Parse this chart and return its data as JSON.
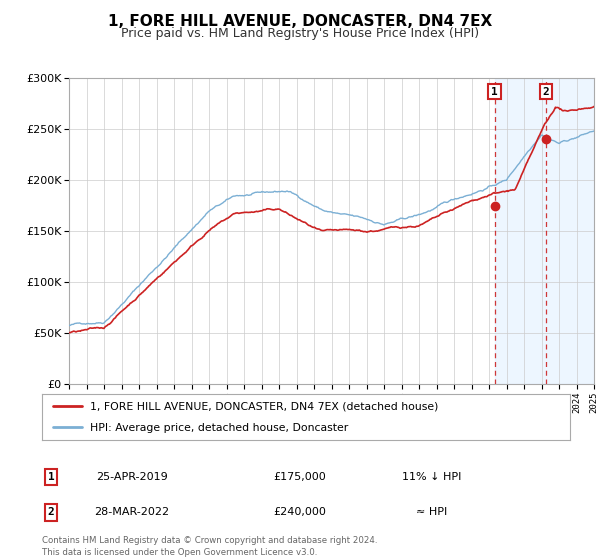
{
  "title": "1, FORE HILL AVENUE, DONCASTER, DN4 7EX",
  "subtitle": "Price paid vs. HM Land Registry's House Price Index (HPI)",
  "xlim": [
    1995,
    2025
  ],
  "ylim": [
    0,
    300000
  ],
  "yticks": [
    0,
    50000,
    100000,
    150000,
    200000,
    250000,
    300000
  ],
  "ytick_labels": [
    "£0",
    "£50K",
    "£100K",
    "£150K",
    "£200K",
    "£250K",
    "£300K"
  ],
  "hpi_color": "#7bafd4",
  "price_color": "#cc2222",
  "marker1_year": 2019.32,
  "marker1_price": 175000,
  "marker2_year": 2022.24,
  "marker2_price": 240000,
  "vline1_year": 2019.32,
  "vline2_year": 2022.24,
  "shade_color": "#ddeeff",
  "shade_alpha": 0.5,
  "legend_label1": "1, FORE HILL AVENUE, DONCASTER, DN4 7EX (detached house)",
  "legend_label2": "HPI: Average price, detached house, Doncaster",
  "table_row1": [
    "1",
    "25-APR-2019",
    "£175,000",
    "11% ↓ HPI"
  ],
  "table_row2": [
    "2",
    "28-MAR-2022",
    "£240,000",
    "≈ HPI"
  ],
  "footnote1": "Contains HM Land Registry data © Crown copyright and database right 2024.",
  "footnote2": "This data is licensed under the Open Government Licence v3.0.",
  "background_color": "#ffffff",
  "grid_color": "#cccccc",
  "title_fontsize": 11,
  "subtitle_fontsize": 9
}
